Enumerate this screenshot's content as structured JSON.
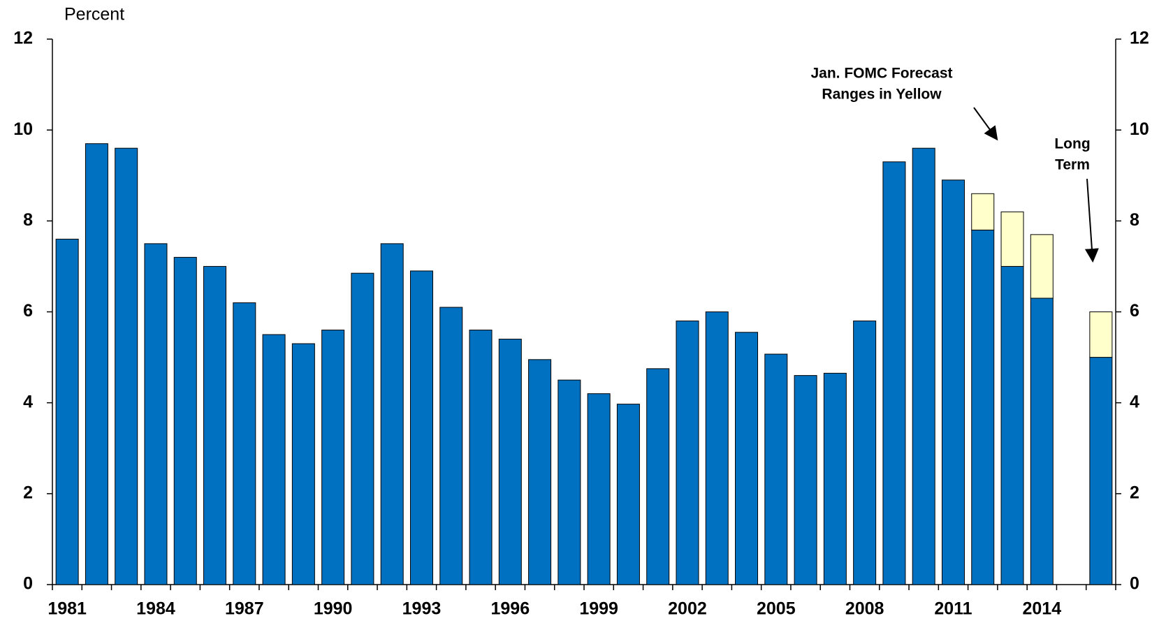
{
  "chart_data": {
    "type": "bar",
    "y_label": "Percent",
    "categories": [
      "1981",
      null,
      null,
      "1984",
      null,
      null,
      "1987",
      null,
      null,
      "1990",
      null,
      null,
      "1993",
      null,
      null,
      "1996",
      null,
      null,
      "1999",
      null,
      null,
      "2002",
      null,
      null,
      "2005",
      null,
      null,
      "2008",
      null,
      null,
      "2011",
      null,
      null,
      "2014",
      null,
      null
    ],
    "stacked": true,
    "series": [
      {
        "color": "#0070c0",
        "values": [
          7.6,
          9.7,
          9.6,
          7.5,
          7.2,
          7.0,
          6.2,
          5.5,
          5.3,
          5.6,
          6.85,
          7.5,
          6.9,
          6.1,
          5.6,
          5.4,
          4.95,
          4.5,
          4.2,
          3.97,
          4.75,
          5.8,
          6.0,
          5.55,
          5.07,
          4.6,
          4.65,
          5.8,
          9.3,
          9.6,
          8.9,
          7.8,
          7.0,
          6.3,
          null,
          5.0
        ]
      },
      {
        "color": "#ffffcc",
        "values": [
          null,
          null,
          null,
          null,
          null,
          null,
          null,
          null,
          null,
          null,
          null,
          null,
          null,
          null,
          null,
          null,
          null,
          null,
          null,
          null,
          null,
          null,
          null,
          null,
          null,
          null,
          null,
          null,
          null,
          null,
          null,
          0.8,
          1.2,
          1.4,
          null,
          1.0
        ]
      }
    ],
    "ylim": [
      0,
      12
    ],
    "yticks": [
      0,
      2,
      4,
      6,
      8,
      10,
      12
    ],
    "y2lim": [
      0,
      12
    ],
    "y2ticks": [
      0,
      2,
      4,
      6,
      8,
      10,
      12
    ],
    "grid": false,
    "annotations": [
      {
        "lines": [
          "Jan. FOMC Forecast",
          "Ranges in Yellow"
        ]
      },
      {
        "lines": [
          "Long",
          "Term"
        ]
      }
    ]
  }
}
